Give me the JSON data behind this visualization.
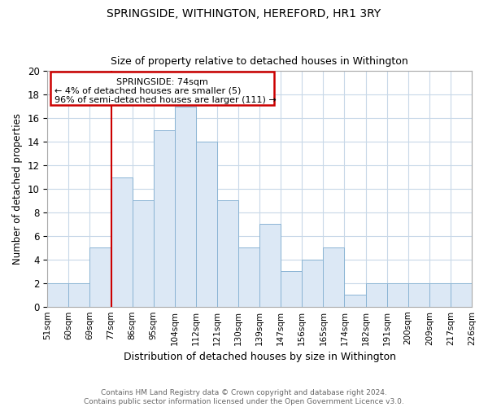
{
  "title": "SPRINGSIDE, WITHINGTON, HEREFORD, HR1 3RY",
  "subtitle": "Size of property relative to detached houses in Withington",
  "xlabel": "Distribution of detached houses by size in Withington",
  "ylabel": "Number of detached properties",
  "bin_labels": [
    "51sqm",
    "60sqm",
    "69sqm",
    "77sqm",
    "86sqm",
    "95sqm",
    "104sqm",
    "112sqm",
    "121sqm",
    "130sqm",
    "139sqm",
    "147sqm",
    "156sqm",
    "165sqm",
    "174sqm",
    "182sqm",
    "191sqm",
    "200sqm",
    "209sqm",
    "217sqm",
    "226sqm"
  ],
  "bar_values": [
    2,
    2,
    5,
    11,
    9,
    15,
    17,
    14,
    9,
    5,
    7,
    3,
    4,
    5,
    1,
    2,
    2,
    2,
    2,
    2
  ],
  "bar_color": "#dce8f5",
  "bar_edge_color": "#8ab4d4",
  "ylim": [
    0,
    20
  ],
  "yticks": [
    0,
    2,
    4,
    6,
    8,
    10,
    12,
    14,
    16,
    18,
    20
  ],
  "vline_x_index": 3,
  "vline_color": "#cc0000",
  "annotation_line1": "SPRINGSIDE: 74sqm",
  "annotation_line2": "← 4% of detached houses are smaller (5)",
  "annotation_line3": "96% of semi-detached houses are larger (111) →",
  "annotation_box_color": "#cc0000",
  "annotation_text_fontsize": 8,
  "footer_text": "Contains HM Land Registry data © Crown copyright and database right 2024.\nContains public sector information licensed under the Open Government Licence v3.0.",
  "background_color": "#ffffff",
  "grid_color": "#c8d8e8",
  "title_fontsize": 10,
  "subtitle_fontsize": 9
}
